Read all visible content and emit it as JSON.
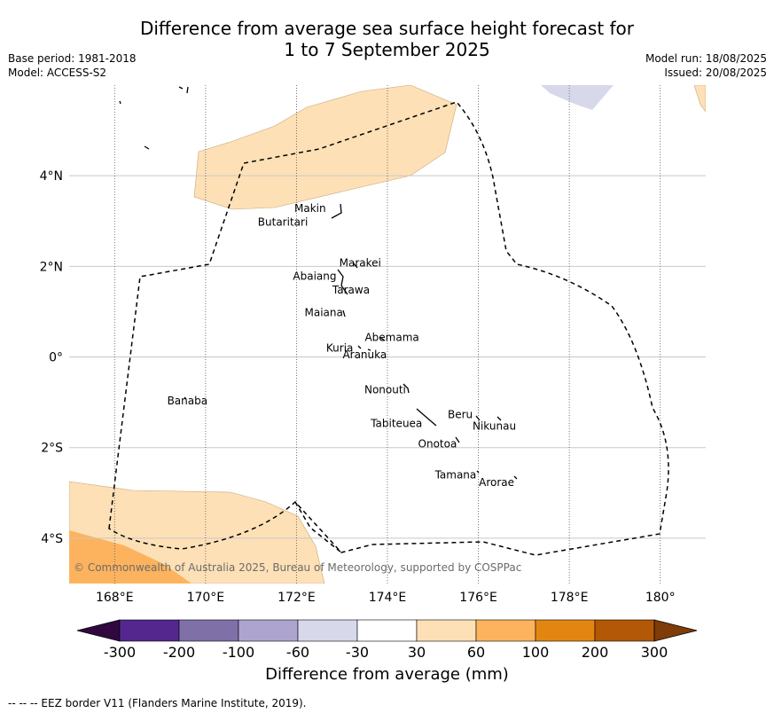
{
  "header": {
    "title_line1": "Difference from average sea surface height forecast for",
    "title_line2": "1 to 7 September 2025",
    "base_period": "Base period: 1981-2018",
    "model": "Model: ACCESS-S2",
    "model_run": "Model run: 18/08/2025",
    "issued": "Issued: 20/08/2025"
  },
  "map": {
    "lon_range": [
      167,
      181
    ],
    "lat_range": [
      -5,
      6
    ],
    "lon_ticks": [
      168,
      170,
      172,
      174,
      176,
      178,
      180
    ],
    "lon_tick_labels": [
      "168°E",
      "170°E",
      "172°E",
      "174°E",
      "176°E",
      "178°E",
      "180°"
    ],
    "lat_ticks": [
      4,
      2,
      0,
      -2,
      -4
    ],
    "lat_tick_labels": [
      "4°N",
      "2°N",
      "0°",
      "2°S",
      "4°S"
    ],
    "copyright": "© Commonwealth of Australia 2025, Bureau of Meteorology, supported by COSPPac",
    "places": [
      {
        "name": "Makin",
        "lon": 172.3,
        "lat": 3.2
      },
      {
        "name": "Butaritari",
        "lon": 171.7,
        "lat": 2.9
      },
      {
        "name": "Marakei",
        "lon": 173.4,
        "lat": 2.0
      },
      {
        "name": "Abaiang",
        "lon": 172.4,
        "lat": 1.7
      },
      {
        "name": "Tarawa",
        "lon": 173.2,
        "lat": 1.4
      },
      {
        "name": "Maiana",
        "lon": 172.6,
        "lat": 0.9
      },
      {
        "name": "Abemama",
        "lon": 174.1,
        "lat": 0.35
      },
      {
        "name": "Kuria",
        "lon": 172.95,
        "lat": 0.12
      },
      {
        "name": "Aranuka",
        "lon": 173.5,
        "lat": -0.03
      },
      {
        "name": "Banaba",
        "lon": 169.6,
        "lat": -1.05
      },
      {
        "name": "Nonouti",
        "lon": 173.95,
        "lat": -0.8
      },
      {
        "name": "Tabiteuea",
        "lon": 174.2,
        "lat": -1.55
      },
      {
        "name": "Beru",
        "lon": 175.6,
        "lat": -1.35
      },
      {
        "name": "Nikunau",
        "lon": 176.35,
        "lat": -1.6
      },
      {
        "name": "Onotoa",
        "lon": 175.1,
        "lat": -2.0
      },
      {
        "name": "Tamana",
        "lon": 175.5,
        "lat": -2.68
      },
      {
        "name": "Arorae",
        "lon": 176.4,
        "lat": -2.85
      }
    ]
  },
  "colorbar": {
    "tick_labels": [
      "-300",
      "-200",
      "-100",
      "-60",
      "-30",
      "30",
      "60",
      "100",
      "200",
      "300"
    ],
    "colors": [
      "#30083f",
      "#54278f",
      "#7f70a8",
      "#ada5d0",
      "#d8d8eb",
      "#ffffff",
      "#fde0b6",
      "#fdb35e",
      "#e38611",
      "#b35807",
      "#7f3b08"
    ],
    "title": "Difference from average (mm)"
  },
  "footnote": "--  --  -- EEZ border V11 (Flanders Marine Institute, 2019)."
}
